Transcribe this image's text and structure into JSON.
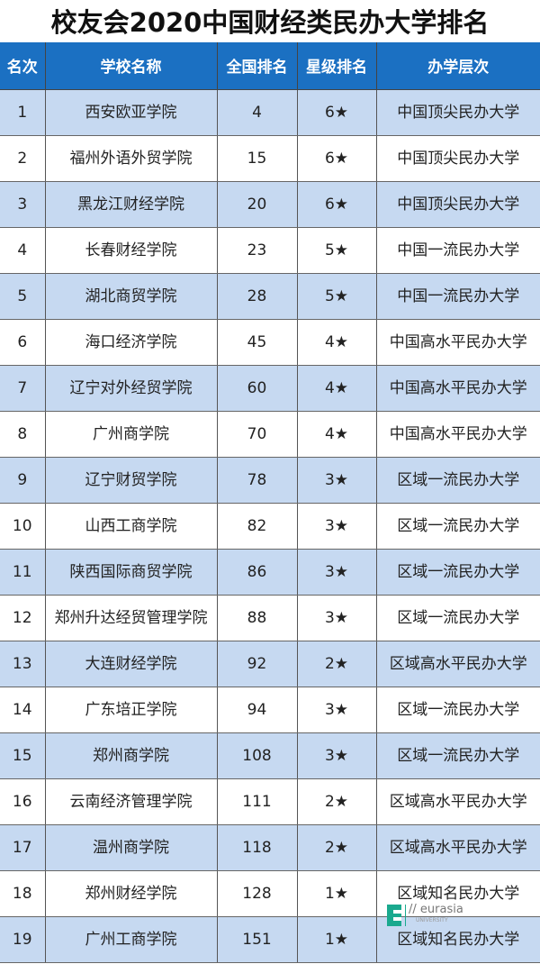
{
  "title": "校友会2020中国财经类民办大学排名",
  "headers": [
    "名次",
    "学校名称",
    "全国排名",
    "星级排名",
    "办学层次"
  ],
  "rows": [
    [
      "1",
      "西安欧亚学院",
      "4",
      "6★",
      "中国顶尖民办大学"
    ],
    [
      "2",
      "福州外语外贸学院",
      "15",
      "6★",
      "中国顶尖民办大学"
    ],
    [
      "3",
      "黑龙江财经学院",
      "20",
      "6★",
      "中国顶尖民办大学"
    ],
    [
      "4",
      "长春财经学院",
      "23",
      "5★",
      "中国一流民办大学"
    ],
    [
      "5",
      "湖北商贸学院",
      "28",
      "5★",
      "中国一流民办大学"
    ],
    [
      "6",
      "海口经济学院",
      "45",
      "4★",
      "中国高水平民办大学"
    ],
    [
      "7",
      "辽宁对外经贸学院",
      "60",
      "4★",
      "中国高水平民办大学"
    ],
    [
      "8",
      "广州商学院",
      "70",
      "4★",
      "中国高水平民办大学"
    ],
    [
      "9",
      "辽宁财贸学院",
      "78",
      "3★",
      "区域一流民办大学"
    ],
    [
      "10",
      "山西工商学院",
      "82",
      "3★",
      "区域一流民办大学"
    ],
    [
      "11",
      "陕西国际商贸学院",
      "86",
      "3★",
      "区域一流民办大学"
    ],
    [
      "12",
      "郑州升达经贸管理学院",
      "88",
      "3★",
      "区域一流民办大学"
    ],
    [
      "13",
      "大连财经学院",
      "92",
      "2★",
      "区域高水平民办大学"
    ],
    [
      "14",
      "广东培正学院",
      "94",
      "3★",
      "区域一流民办大学"
    ],
    [
      "15",
      "郑州商学院",
      "108",
      "3★",
      "区域一流民办大学"
    ],
    [
      "16",
      "云南经济管理学院",
      "111",
      "2★",
      "区域高水平民办大学"
    ],
    [
      "17",
      "温州商学院",
      "118",
      "2★",
      "区域高水平民办大学"
    ],
    [
      "18",
      "郑州财经学院",
      "128",
      "1★",
      "区域知名民办大学"
    ],
    [
      "19",
      "广州工商学院",
      "151",
      "1★",
      "区域知名民办大学"
    ]
  ],
  "watermark": {
    "brand": "eurasia",
    "sub": "UNIVERSITY",
    "color": "#1aa98e"
  },
  "colors": {
    "header": "#1b70c2",
    "odd_row": "#c6d9f1"
  }
}
